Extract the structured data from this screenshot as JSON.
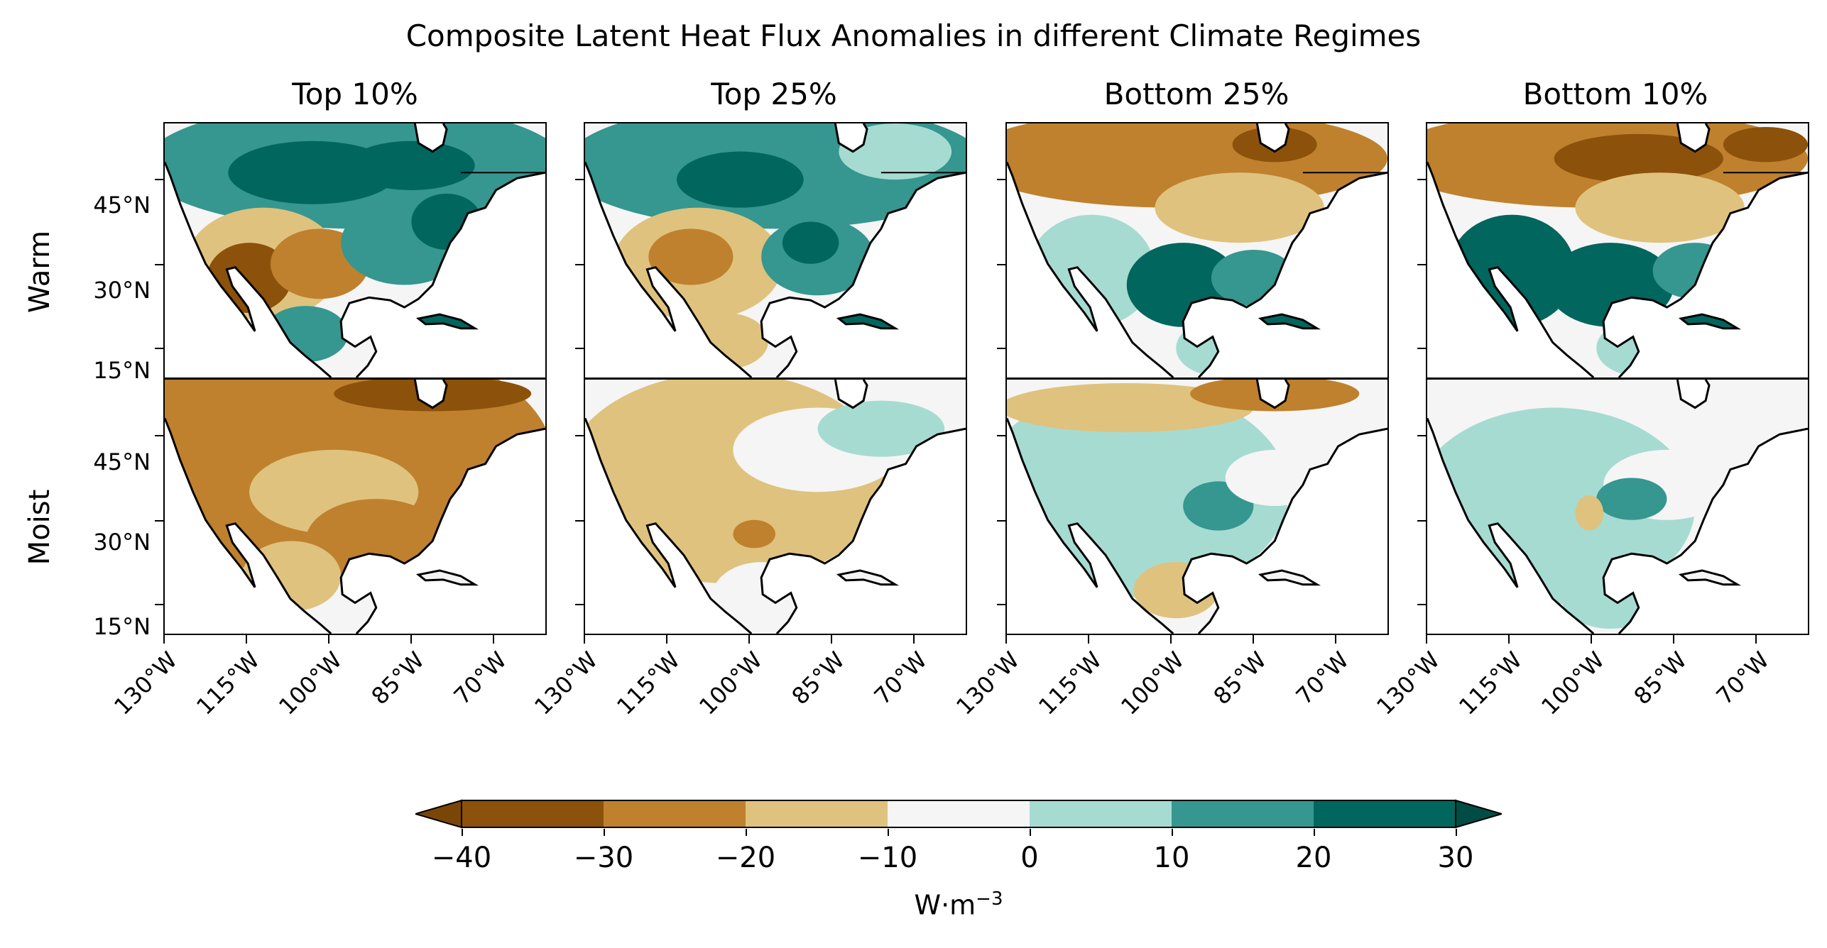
{
  "title": "Composite Latent Heat Flux Anomalies in different Climate Regimes",
  "columns": [
    "Top 10%",
    "Top 25%",
    "Bottom 25%",
    "Bottom 10%"
  ],
  "rows": [
    "Warm",
    "Moist"
  ],
  "lat_ticks": [
    "45°N",
    "30°N",
    "15°N"
  ],
  "lon_ticks": [
    "130°W",
    "115°W",
    "100°W",
    "85°W",
    "70°W"
  ],
  "colorbar": {
    "ticks": [
      "−40",
      "−30",
      "−20",
      "−10",
      "0",
      "10",
      "20",
      "30"
    ],
    "unit_base": "W·m",
    "unit_exp": "−3",
    "colors": [
      "#8c510a",
      "#bf812d",
      "#dfc27d",
      "#f5f5f5",
      "#a6dbd2",
      "#35978f",
      "#01665e"
    ],
    "under_color": "#7a4608",
    "over_color": "#014d45"
  },
  "panels": [
    {
      "row": "Warm",
      "col": "Top 10%",
      "dominant": "mixed: wet north/east, dry southwest"
    },
    {
      "row": "Warm",
      "col": "Top 25%",
      "dominant": "mixed: wet north/east, dry southwest"
    },
    {
      "row": "Warm",
      "col": "Bottom 25%",
      "dominant": "mixed: dry north, wet south-central"
    },
    {
      "row": "Warm",
      "col": "Bottom 10%",
      "dominant": "mixed: dry north, wet south-central"
    },
    {
      "row": "Moist",
      "col": "Top 10%",
      "dominant": "negative"
    },
    {
      "row": "Moist",
      "col": "Top 25%",
      "dominant": "weakly negative"
    },
    {
      "row": "Moist",
      "col": "Bottom 25%",
      "dominant": "weakly positive"
    },
    {
      "row": "Moist",
      "col": "Bottom 10%",
      "dominant": "weakly positive"
    }
  ]
}
